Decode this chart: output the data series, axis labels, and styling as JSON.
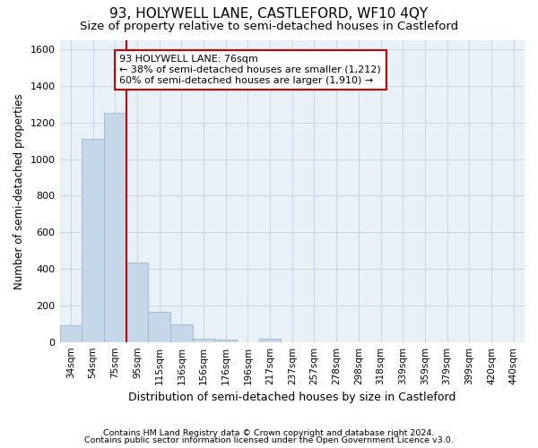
{
  "title": "93, HOLYWELL LANE, CASTLEFORD, WF10 4QY",
  "subtitle": "Size of property relative to semi-detached houses in Castleford",
  "xlabel": "Distribution of semi-detached houses by size in Castleford",
  "ylabel": "Number of semi-detached properties",
  "categories": [
    "34sqm",
    "54sqm",
    "75sqm",
    "95sqm",
    "115sqm",
    "136sqm",
    "156sqm",
    "176sqm",
    "196sqm",
    "217sqm",
    "237sqm",
    "257sqm",
    "278sqm",
    "298sqm",
    "318sqm",
    "339sqm",
    "359sqm",
    "379sqm",
    "399sqm",
    "420sqm",
    "440sqm"
  ],
  "values": [
    90,
    1110,
    1255,
    435,
    165,
    95,
    20,
    15,
    0,
    20,
    0,
    0,
    0,
    0,
    0,
    0,
    0,
    0,
    0,
    0,
    0
  ],
  "property_size_idx": 2,
  "bar_color": "#c5d8ea",
  "bar_edge_color": "#9ab5cc",
  "vline_color": "#cc0000",
  "annotation_box_edge_color": "#cc0000",
  "annotation_text_line1": "93 HOLYWELL LANE: 76sqm",
  "annotation_text_line2": "← 38% of semi-detached houses are smaller (1,212)",
  "annotation_text_line3": "60% of semi-detached houses are larger (1,910) →",
  "footer1": "Contains HM Land Registry data © Crown copyright and database right 2024.",
  "footer2": "Contains public sector information licensed under the Open Government Licence v3.0.",
  "ylim": [
    0,
    1650
  ],
  "yticks": [
    0,
    200,
    400,
    600,
    800,
    1000,
    1200,
    1400,
    1600
  ],
  "grid_color": "#c8d4e0",
  "bg_color": "#e8f0f8",
  "title_fontsize": 11,
  "subtitle_fontsize": 9.5,
  "ylabel_fontsize": 8.5,
  "xlabel_fontsize": 9,
  "tick_fontsize": 7.5,
  "footer_fontsize": 6.8,
  "annotation_fontsize": 8
}
